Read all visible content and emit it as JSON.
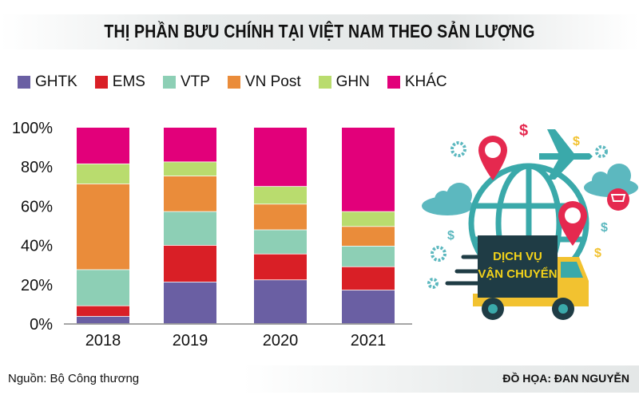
{
  "title": "THỊ PHẦN BƯU CHÍNH TẠI VIỆT NAM THEO SẢN LƯỢNG",
  "source": "Nguồn: Bộ Công thương",
  "credit": "ĐỒ HỌA: ĐAN NGUYỄN",
  "illustration": {
    "line1": "DỊCH VỤ",
    "line2": "VẬN CHUYỂN",
    "icons": [
      "globe-icon",
      "airplane-icon",
      "map-pin-icon",
      "cloud-icon",
      "truck-icon",
      "dollar-icon",
      "gear-icon",
      "shopping-cart-icon"
    ]
  },
  "chart_data": {
    "type": "bar",
    "stacked": true,
    "categories": [
      "2018",
      "2019",
      "2020",
      "2021"
    ],
    "series": [
      {
        "name": "GHTK",
        "color": "#6a5fa3",
        "values": [
          3.7,
          21.2,
          22.3,
          17.1
        ]
      },
      {
        "name": "EMS",
        "color": "#d91f26",
        "values": [
          5.4,
          18.7,
          13.2,
          11.9
        ]
      },
      {
        "name": "VTP",
        "color": "#8dcfb5",
        "values": [
          18.4,
          17.2,
          12.3,
          10.5
        ]
      },
      {
        "name": "VN Post",
        "color": "#ea8c3a",
        "values": [
          43.7,
          18.1,
          13.1,
          10.0
        ]
      },
      {
        "name": "GHN",
        "color": "#b9dc6e",
        "values": [
          10.2,
          7.2,
          9.0,
          7.6
        ]
      },
      {
        "name": "KHÁC",
        "color": "#e2007a",
        "values": [
          18.6,
          17.6,
          30.1,
          42.9
        ]
      }
    ],
    "yticks": [
      "0%",
      "20%",
      "40%",
      "60%",
      "80%",
      "100%"
    ],
    "ylim": [
      0,
      100
    ],
    "grid": false,
    "legend": "top-left"
  }
}
